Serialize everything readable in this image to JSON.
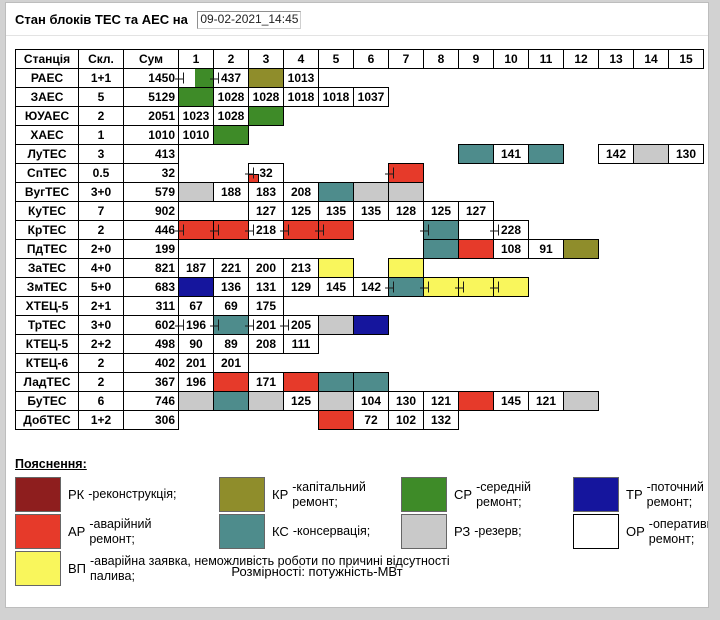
{
  "page": {
    "title": "Стан блоків ТЕС та АЕС на",
    "datetime_value": "09-02-2021_14:45",
    "units_note": "Розмірності: потужність-МВт"
  },
  "colors": {
    "SR": "#3e8b28",
    "KR": "#8f8d2b",
    "KS": "#4e8c8c",
    "RZ": "#c9c9c9",
    "AR": "#e63a2a",
    "RK": "#8e1e1e",
    "VP": "#f9f65c",
    "TR": "#15159d",
    "OR": "#ffffff"
  },
  "table": {
    "headers": [
      "Станція",
      "Скл.",
      "Сум",
      "1",
      "2",
      "3",
      "4",
      "5",
      "6",
      "7",
      "8",
      "9",
      "10",
      "11",
      "12",
      "13",
      "14",
      "15"
    ],
    "rows": [
      {
        "name": "РАЕС",
        "skl": "1+1",
        "sum": "1450",
        "cells": [
          {
            "c": 1,
            "bg": "SR",
            "half": true,
            "mark": true
          },
          {
            "c": 2,
            "v": "437",
            "mark": true
          },
          {
            "c": 3,
            "bg": "KR"
          },
          {
            "c": 4,
            "v": "1013"
          }
        ]
      },
      {
        "name": "ЗАЕС",
        "skl": "5",
        "sum": "5129",
        "cells": [
          {
            "c": 1,
            "bg": "SR"
          },
          {
            "c": 2,
            "v": "1028"
          },
          {
            "c": 3,
            "v": "1028"
          },
          {
            "c": 4,
            "v": "1018"
          },
          {
            "c": 5,
            "v": "1018"
          },
          {
            "c": 6,
            "v": "1037"
          }
        ]
      },
      {
        "name": "ЮУАЕС",
        "skl": "2",
        "sum": "2051",
        "cells": [
          {
            "c": 1,
            "v": "1023"
          },
          {
            "c": 2,
            "v": "1028"
          },
          {
            "c": 3,
            "bg": "SR"
          }
        ]
      },
      {
        "name": "ХАЕС",
        "skl": "1",
        "sum": "1010",
        "cells": [
          {
            "c": 1,
            "v": "1010"
          },
          {
            "c": 2,
            "bg": "SR"
          }
        ]
      },
      {
        "name": "ЛуТЕС",
        "skl": "3",
        "sum": "413",
        "cells": [
          {
            "c": 9,
            "bg": "KS"
          },
          {
            "c": 10,
            "v": "141"
          },
          {
            "c": 11,
            "bg": "KS"
          },
          {
            "c": 13,
            "v": "142"
          },
          {
            "c": 14,
            "bg": "RZ"
          },
          {
            "c": 15,
            "v": "130"
          }
        ]
      },
      {
        "name": "СпТЕС",
        "skl": "0.5",
        "sum": "32",
        "cells": [
          {
            "c": 3,
            "v": "32",
            "mark": true,
            "corner": "AR"
          },
          {
            "c": 7,
            "bg": "AR",
            "mark": true
          }
        ]
      },
      {
        "name": "ВугТЕС",
        "skl": "3+0",
        "sum": "579",
        "cells": [
          {
            "c": 1,
            "bg": "RZ"
          },
          {
            "c": 2,
            "v": "188"
          },
          {
            "c": 3,
            "v": "183"
          },
          {
            "c": 4,
            "v": "208"
          },
          {
            "c": 5,
            "bg": "KS"
          },
          {
            "c": 6,
            "bg": "RZ"
          },
          {
            "c": 7,
            "bg": "RZ"
          }
        ]
      },
      {
        "name": "КуТЕС",
        "skl": "7",
        "sum": "902",
        "cells": [
          {
            "c": 3,
            "v": "127"
          },
          {
            "c": 4,
            "v": "125"
          },
          {
            "c": 5,
            "v": "135"
          },
          {
            "c": 6,
            "v": "135"
          },
          {
            "c": 7,
            "v": "128"
          },
          {
            "c": 8,
            "v": "125"
          },
          {
            "c": 9,
            "v": "127"
          }
        ]
      },
      {
        "name": "КрТЕС",
        "skl": "2",
        "sum": "446",
        "cells": [
          {
            "c": 1,
            "bg": "AR",
            "mark": true
          },
          {
            "c": 2,
            "bg": "AR",
            "mark": true
          },
          {
            "c": 3,
            "v": "218",
            "mark": true
          },
          {
            "c": 4,
            "bg": "AR",
            "mark": true
          },
          {
            "c": 5,
            "bg": "AR",
            "mark": true
          },
          {
            "c": 8,
            "bg": "KS",
            "mark": true
          },
          {
            "c": 10,
            "v": "228",
            "mark": true
          }
        ]
      },
      {
        "name": "ПдТЕС",
        "skl": "2+0",
        "sum": "199",
        "cells": [
          {
            "c": 8,
            "bg": "KS"
          },
          {
            "c": 9,
            "bg": "AR"
          },
          {
            "c": 10,
            "v": "108"
          },
          {
            "c": 11,
            "v": "91"
          },
          {
            "c": 12,
            "bg": "KR"
          }
        ]
      },
      {
        "name": "ЗаТЕС",
        "skl": "4+0",
        "sum": "821",
        "cells": [
          {
            "c": 1,
            "v": "187"
          },
          {
            "c": 2,
            "v": "221"
          },
          {
            "c": 3,
            "v": "200"
          },
          {
            "c": 4,
            "v": "213"
          },
          {
            "c": 5,
            "bg": "VP"
          },
          {
            "c": 7,
            "bg": "VP"
          }
        ]
      },
      {
        "name": "ЗмТЕС",
        "skl": "5+0",
        "sum": "683",
        "cells": [
          {
            "c": 1,
            "bg": "TR"
          },
          {
            "c": 2,
            "v": "136"
          },
          {
            "c": 3,
            "v": "131"
          },
          {
            "c": 4,
            "v": "129"
          },
          {
            "c": 5,
            "v": "145"
          },
          {
            "c": 6,
            "v": "142"
          },
          {
            "c": 7,
            "bg": "KS",
            "mark": true
          },
          {
            "c": 8,
            "bg": "VP",
            "mark": true
          },
          {
            "c": 9,
            "bg": "VP",
            "mark": true
          },
          {
            "c": 10,
            "bg": "VP",
            "mark": true
          }
        ]
      },
      {
        "name": "ХТЕЦ-5",
        "skl": "2+1",
        "sum": "311",
        "cells": [
          {
            "c": 1,
            "v": "67"
          },
          {
            "c": 2,
            "v": "69"
          },
          {
            "c": 3,
            "v": "175"
          }
        ]
      },
      {
        "name": "ТрТЕС",
        "skl": "3+0",
        "sum": "602",
        "cells": [
          {
            "c": 1,
            "v": "196",
            "mark": true
          },
          {
            "c": 2,
            "bg": "KS",
            "mark": true
          },
          {
            "c": 3,
            "v": "201",
            "mark": true
          },
          {
            "c": 4,
            "v": "205",
            "mark": true
          },
          {
            "c": 5,
            "bg": "RZ"
          },
          {
            "c": 6,
            "bg": "TR"
          }
        ]
      },
      {
        "name": "КТЕЦ-5",
        "skl": "2+2",
        "sum": "498",
        "cells": [
          {
            "c": 1,
            "v": "90"
          },
          {
            "c": 2,
            "v": "89"
          },
          {
            "c": 3,
            "v": "208"
          },
          {
            "c": 4,
            "v": "111"
          }
        ]
      },
      {
        "name": "КТЕЦ-6",
        "skl": "2",
        "sum": "402",
        "cells": [
          {
            "c": 1,
            "v": "201"
          },
          {
            "c": 2,
            "v": "201"
          }
        ]
      },
      {
        "name": "ЛадТЕС",
        "skl": "2",
        "sum": "367",
        "cells": [
          {
            "c": 1,
            "v": "196"
          },
          {
            "c": 2,
            "bg": "AR"
          },
          {
            "c": 3,
            "v": "171"
          },
          {
            "c": 4,
            "bg": "AR"
          },
          {
            "c": 5,
            "bg": "KS"
          },
          {
            "c": 6,
            "bg": "KS"
          }
        ]
      },
      {
        "name": "БуТЕС",
        "skl": "6",
        "sum": "746",
        "cells": [
          {
            "c": 1,
            "bg": "RZ"
          },
          {
            "c": 2,
            "bg": "KS"
          },
          {
            "c": 3,
            "bg": "RZ"
          },
          {
            "c": 4,
            "v": "125"
          },
          {
            "c": 5,
            "bg": "RZ"
          },
          {
            "c": 6,
            "v": "104"
          },
          {
            "c": 7,
            "v": "130"
          },
          {
            "c": 8,
            "v": "121"
          },
          {
            "c": 9,
            "bg": "AR"
          },
          {
            "c": 10,
            "v": "145"
          },
          {
            "c": 11,
            "v": "121"
          },
          {
            "c": 12,
            "bg": "RZ"
          }
        ]
      },
      {
        "name": "ДобТЕС",
        "skl": "1+2",
        "sum": "306",
        "cells": [
          {
            "c": 5,
            "bg": "AR"
          },
          {
            "c": 6,
            "v": "72"
          },
          {
            "c": 7,
            "v": "102"
          },
          {
            "c": 8,
            "v": "132"
          }
        ]
      }
    ]
  },
  "legend": {
    "title": "Пояснення:",
    "items": [
      {
        "col": 1,
        "code": "РК",
        "color": "RK",
        "text": "-реконструкція;"
      },
      {
        "col": 1,
        "code": "АР",
        "color": "AR",
        "text": "-аварійний ремонт;"
      },
      {
        "col": 1,
        "code": "ВП",
        "color": "VP",
        "text": "-аварійна заявка, неможливість роботи по причині відсутності палива;",
        "wide": true
      },
      {
        "col": 2,
        "code": "КР",
        "color": "KR",
        "text": "-капітальний ремонт;"
      },
      {
        "col": 2,
        "code": "КС",
        "color": "KS",
        "text": "-консервація;"
      },
      {
        "col": 3,
        "code": "СР",
        "color": "SR",
        "text": "-середній ремонт;"
      },
      {
        "col": 3,
        "code": "РЗ",
        "color": "RZ",
        "text": "-резерв;"
      },
      {
        "col": 4,
        "code": "ТР",
        "color": "TR",
        "text": "-поточний ремонт;"
      },
      {
        "col": 4,
        "code": "ОР",
        "color": "OR",
        "text": "-оперативний ремонт;"
      }
    ]
  }
}
